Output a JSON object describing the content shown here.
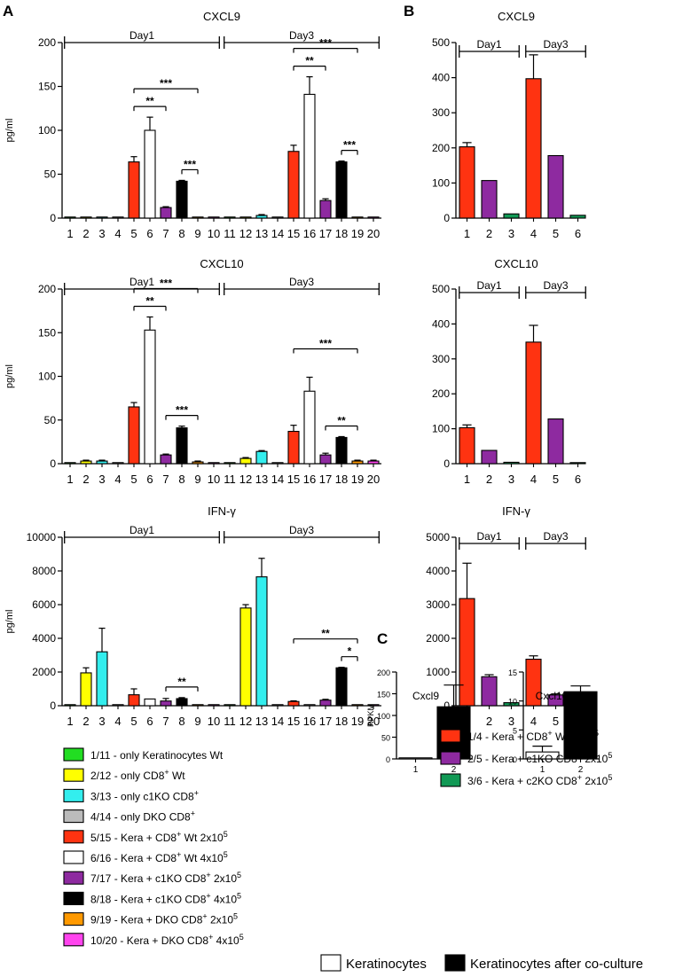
{
  "panel_labels": {
    "A": "A",
    "B": "B",
    "C": "C"
  },
  "colors": {
    "green": "#22dd22",
    "yellow": "#ffff00",
    "cyan": "#33eeee",
    "gray": "#bbbbbb",
    "red": "#ff3311",
    "white": "#ffffff",
    "purple": "#8e2aa0",
    "black": "#000000",
    "orange": "#ff9900",
    "pink": "#ff44ee",
    "teal": "#119955"
  },
  "legend_A": [
    {
      "color": "green",
      "prefix": "1/11 - only Keratinocytes Wt",
      "sup1": "",
      "mid": "",
      "sup2": ""
    },
    {
      "color": "yellow",
      "prefix": "2/12 - only CD8",
      "sup1": "+",
      "mid": " Wt",
      "sup2": ""
    },
    {
      "color": "cyan",
      "prefix": "3/13 - only c1KO CD8",
      "sup1": "+",
      "mid": "",
      "sup2": ""
    },
    {
      "color": "gray",
      "prefix": "4/14 - only DKO CD8",
      "sup1": "+",
      "mid": "",
      "sup2": ""
    },
    {
      "color": "red",
      "prefix": "5/15 - Kera + CD8",
      "sup1": "+",
      "mid": " Wt 2x10",
      "sup2": "5"
    },
    {
      "color": "white",
      "prefix": "6/16 - Kera + CD8",
      "sup1": "+",
      "mid": " Wt 4x10",
      "sup2": "5"
    },
    {
      "color": "purple",
      "prefix": "7/17 - Kera + c1KO CD8",
      "sup1": "+",
      "mid": " 2x10",
      "sup2": "5"
    },
    {
      "color": "black",
      "prefix": "8/18 - Kera + c1KO CD8",
      "sup1": "+",
      "mid": " 4x10",
      "sup2": "5"
    },
    {
      "color": "orange",
      "prefix": "9/19 - Kera + DKO CD8",
      "sup1": "+",
      "mid": " 2x10",
      "sup2": "5"
    },
    {
      "color": "pink",
      "prefix": "10/20 - Kera + DKO CD8",
      "sup1": "+",
      "mid": " 4x10",
      "sup2": "5"
    }
  ],
  "legend_B": [
    {
      "color": "red",
      "prefix": "1/4 - Kera + CD8",
      "sup1": "+",
      "mid": " Wt 2x10",
      "sup2": "5"
    },
    {
      "color": "purple",
      "prefix": "2/5 - Kera + c1KO CD8",
      "sup1": "+",
      "mid": " 2x10",
      "sup2": "5"
    },
    {
      "color": "teal",
      "prefix": "3/6 - Kera + c2KO CD8",
      "sup1": "+",
      "mid": " 2x10",
      "sup2": "5"
    }
  ],
  "legend_C": [
    {
      "color": "white",
      "label": "Keratinocytes"
    },
    {
      "color": "black",
      "label": "Keratinocytes after co-culture"
    }
  ],
  "chart_data": [
    {
      "id": "A1",
      "panel": "A",
      "type": "bar",
      "title": "CXCL9",
      "ylabel": "pg/ml",
      "xlabel": "",
      "ylim": [
        0,
        200
      ],
      "yticks": [
        0,
        50,
        100,
        150,
        200
      ],
      "categories": [
        "1",
        "2",
        "3",
        "4",
        "5",
        "6",
        "7",
        "8",
        "9",
        "10",
        "11",
        "12",
        "13",
        "14",
        "15",
        "16",
        "17",
        "18",
        "19",
        "20"
      ],
      "colors": [
        "green",
        "yellow",
        "cyan",
        "gray",
        "red",
        "white",
        "purple",
        "black",
        "orange",
        "pink",
        "green",
        "yellow",
        "cyan",
        "gray",
        "red",
        "white",
        "purple",
        "black",
        "orange",
        "pink"
      ],
      "values": [
        1,
        1,
        1,
        1,
        64,
        100,
        12,
        42,
        1,
        1,
        1,
        1,
        3,
        1,
        76,
        141,
        20,
        64,
        1,
        1
      ],
      "errors": [
        0,
        0,
        0,
        0,
        6,
        15,
        1,
        1,
        0,
        0,
        0,
        0,
        1,
        0,
        7,
        20,
        2,
        1,
        0,
        0
      ],
      "groups": [
        {
          "label": "Day1",
          "from": 1,
          "to": 10
        },
        {
          "label": "Day3",
          "from": 11,
          "to": 20
        }
      ],
      "significance": [
        {
          "from": 5,
          "to": 9,
          "label": "***",
          "level": 1
        },
        {
          "from": 5,
          "to": 7,
          "label": "**",
          "level": 0
        },
        {
          "from": 8,
          "to": 9,
          "label": "***",
          "level": 0
        },
        {
          "from": 15,
          "to": 19,
          "label": "***",
          "level": 1
        },
        {
          "from": 15,
          "to": 17,
          "label": "**",
          "level": 0
        },
        {
          "from": 18,
          "to": 19,
          "label": "***",
          "level": 0
        }
      ]
    },
    {
      "id": "A2",
      "panel": "A",
      "type": "bar",
      "title": "CXCL10",
      "ylabel": "pg/ml",
      "xlabel": "",
      "ylim": [
        0,
        200
      ],
      "yticks": [
        0,
        50,
        100,
        150,
        200
      ],
      "categories": [
        "1",
        "2",
        "3",
        "4",
        "5",
        "6",
        "7",
        "8",
        "9",
        "10",
        "11",
        "12",
        "13",
        "14",
        "15",
        "16",
        "17",
        "18",
        "19",
        "20"
      ],
      "colors": [
        "green",
        "yellow",
        "cyan",
        "gray",
        "red",
        "white",
        "purple",
        "black",
        "orange",
        "pink",
        "green",
        "yellow",
        "cyan",
        "gray",
        "red",
        "white",
        "purple",
        "black",
        "orange",
        "pink"
      ],
      "values": [
        1,
        3,
        3,
        1,
        65,
        153,
        10,
        41,
        2,
        1,
        1,
        6,
        14,
        1,
        37,
        83,
        10,
        30,
        3,
        3
      ],
      "errors": [
        0,
        1,
        1,
        0,
        5,
        15,
        1,
        2,
        1,
        0,
        0,
        1,
        1,
        0,
        7,
        16,
        2,
        1,
        1,
        1
      ],
      "groups": [
        {
          "label": "Day1",
          "from": 1,
          "to": 10
        },
        {
          "label": "Day3",
          "from": 11,
          "to": 20
        }
      ],
      "significance": [
        {
          "from": 5,
          "to": 9,
          "label": "***",
          "level": 1
        },
        {
          "from": 5,
          "to": 7,
          "label": "**",
          "level": 0
        },
        {
          "from": 7,
          "to": 9,
          "label": "***",
          "level": 0
        },
        {
          "from": 15,
          "to": 19,
          "label": "***",
          "level": 1
        },
        {
          "from": 17,
          "to": 19,
          "label": "**",
          "level": 0
        }
      ]
    },
    {
      "id": "A3",
      "panel": "A",
      "type": "bar",
      "title": "IFN-γ",
      "ylabel": "pg/ml",
      "xlabel": "",
      "ylim": [
        0,
        10000
      ],
      "yticks": [
        0,
        2000,
        4000,
        6000,
        8000,
        10000
      ],
      "categories": [
        "1",
        "2",
        "3",
        "4",
        "5",
        "6",
        "7",
        "8",
        "9",
        "10",
        "11",
        "12",
        "13",
        "14",
        "15",
        "16",
        "17",
        "18",
        "19",
        "20"
      ],
      "colors": [
        "green",
        "yellow",
        "cyan",
        "gray",
        "red",
        "white",
        "purple",
        "black",
        "orange",
        "pink",
        "green",
        "yellow",
        "cyan",
        "gray",
        "red",
        "white",
        "purple",
        "black",
        "orange",
        "pink"
      ],
      "values": [
        0,
        1950,
        3200,
        20,
        650,
        400,
        280,
        420,
        20,
        10,
        0,
        5800,
        7650,
        20,
        250,
        60,
        330,
        2250,
        20,
        20
      ],
      "errors": [
        0,
        300,
        1400,
        0,
        350,
        0,
        150,
        60,
        0,
        0,
        0,
        200,
        1100,
        0,
        40,
        0,
        50,
        30,
        0,
        0
      ],
      "groups": [
        {
          "label": "Day1",
          "from": 1,
          "to": 10
        },
        {
          "label": "Day3",
          "from": 11,
          "to": 20
        }
      ],
      "significance": [
        {
          "from": 7,
          "to": 9,
          "label": "**",
          "level": 0
        },
        {
          "from": 15,
          "to": 19,
          "label": "**",
          "level": 1
        },
        {
          "from": 18,
          "to": 19,
          "label": "*",
          "level": 0
        }
      ]
    },
    {
      "id": "B1",
      "panel": "B",
      "type": "bar",
      "title": "CXCL9",
      "ylabel": "",
      "xlabel": "",
      "ylim": [
        0,
        500
      ],
      "yticks": [
        0,
        100,
        200,
        300,
        400,
        500
      ],
      "categories": [
        "1",
        "2",
        "3",
        "4",
        "5",
        "6"
      ],
      "colors": [
        "red",
        "purple",
        "teal",
        "red",
        "purple",
        "teal"
      ],
      "values": [
        203,
        107,
        12,
        397,
        178,
        8
      ],
      "errors": [
        12,
        0,
        0,
        68,
        0,
        0
      ],
      "groups": [
        {
          "label": "Day1",
          "from": 1,
          "to": 3
        },
        {
          "label": "Day3",
          "from": 4,
          "to": 6
        }
      ],
      "significance": []
    },
    {
      "id": "B2",
      "panel": "B",
      "type": "bar",
      "title": "CXCL10",
      "ylabel": "",
      "xlabel": "",
      "ylim": [
        0,
        500
      ],
      "yticks": [
        0,
        100,
        200,
        300,
        400,
        500
      ],
      "categories": [
        "1",
        "2",
        "3",
        "4",
        "5",
        "6"
      ],
      "colors": [
        "red",
        "purple",
        "teal",
        "red",
        "purple",
        "teal"
      ],
      "values": [
        103,
        38,
        4,
        348,
        128,
        2
      ],
      "errors": [
        8,
        0,
        0,
        48,
        0,
        0
      ],
      "groups": [
        {
          "label": "Day1",
          "from": 1,
          "to": 3
        },
        {
          "label": "Day3",
          "from": 4,
          "to": 6
        }
      ],
      "significance": []
    },
    {
      "id": "B3",
      "panel": "B",
      "type": "bar",
      "title": "IFN-γ",
      "ylabel": "",
      "xlabel": "",
      "ylim": [
        0,
        5000
      ],
      "yticks": [
        0,
        1000,
        2000,
        3000,
        4000,
        5000
      ],
      "categories": [
        "1",
        "2",
        "3",
        "4",
        "5",
        "6"
      ],
      "colors": [
        "red",
        "purple",
        "teal",
        "red",
        "purple",
        "teal"
      ],
      "values": [
        3180,
        860,
        90,
        1380,
        320,
        60
      ],
      "errors": [
        1050,
        60,
        0,
        100,
        30,
        0
      ],
      "groups": [
        {
          "label": "Day1",
          "from": 1,
          "to": 3
        },
        {
          "label": "Day3",
          "from": 4,
          "to": 6
        }
      ],
      "significance": []
    },
    {
      "id": "C1",
      "panel": "C",
      "type": "bar",
      "title": "Cxcl9",
      "ylabel": "RPKM",
      "xlabel": "",
      "ylim": [
        0,
        200
      ],
      "yticks": [
        0,
        50,
        100,
        150,
        200
      ],
      "categories": [
        "1",
        "2"
      ],
      "colors": [
        "white",
        "black"
      ],
      "values": [
        0,
        120
      ],
      "errors": [
        0,
        50
      ],
      "groups": [],
      "significance": []
    },
    {
      "id": "C2",
      "panel": "C",
      "type": "bar",
      "title": "Cxcl10",
      "ylabel": "",
      "xlabel": "",
      "ylim": [
        0,
        15
      ],
      "yticks": [
        0,
        5,
        10,
        15
      ],
      "categories": [
        "1",
        "2"
      ],
      "colors": [
        "white",
        "black"
      ],
      "values": [
        1.2,
        11.6
      ],
      "errors": [
        1,
        1
      ],
      "groups": [],
      "significance": []
    }
  ]
}
